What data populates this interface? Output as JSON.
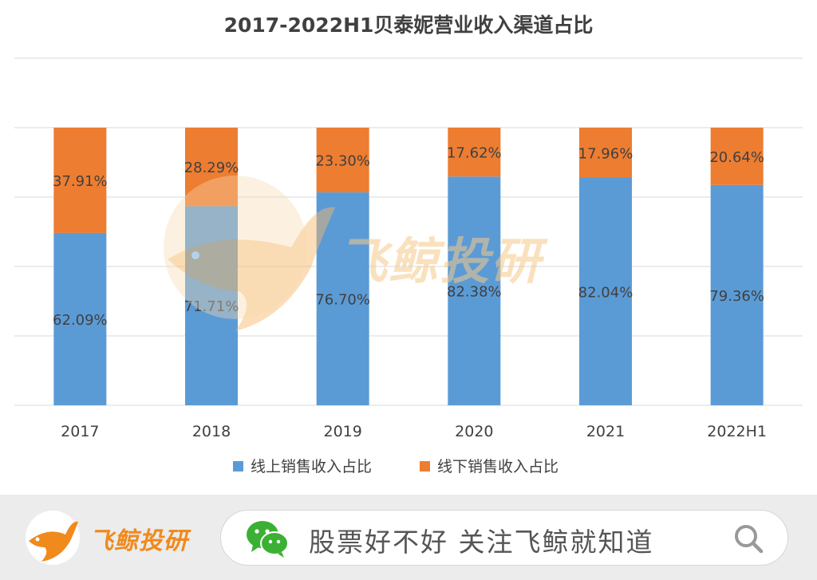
{
  "chart_data": {
    "type": "bar",
    "stacked": true,
    "percent": true,
    "title": "2017-2022H1贝泰妮营业收入渠道占比",
    "categories": [
      "2017",
      "2018",
      "2019",
      "2020",
      "2021",
      "2022H1"
    ],
    "series": [
      {
        "name": "线上销售收入占比",
        "color": "#5b9bd5",
        "values": [
          62.09,
          71.71,
          76.7,
          82.38,
          82.04,
          79.36
        ],
        "labels": [
          "62.09%",
          "71.71%",
          "76.70%",
          "82.38%",
          "82.04%",
          "79.36%"
        ]
      },
      {
        "name": "线下销售收入占比",
        "color": "#ed7d31",
        "values": [
          37.91,
          28.29,
          23.3,
          17.62,
          17.96,
          20.64
        ],
        "labels": [
          "37.91%",
          "28.29%",
          "23.30%",
          "17.62%",
          "17.96%",
          "20.64%"
        ]
      }
    ],
    "ylim": [
      0,
      125
    ],
    "grid": true,
    "legend_position": "bottom"
  },
  "watermark": {
    "text": "飞鲸投研"
  },
  "footer": {
    "brand": "飞鲸投研",
    "search_text": "股票好不好 关注飞鲸就知道",
    "icons": {
      "logo": "whale-logo-icon",
      "wechat": "wechat-icon",
      "search": "search-icon"
    }
  }
}
